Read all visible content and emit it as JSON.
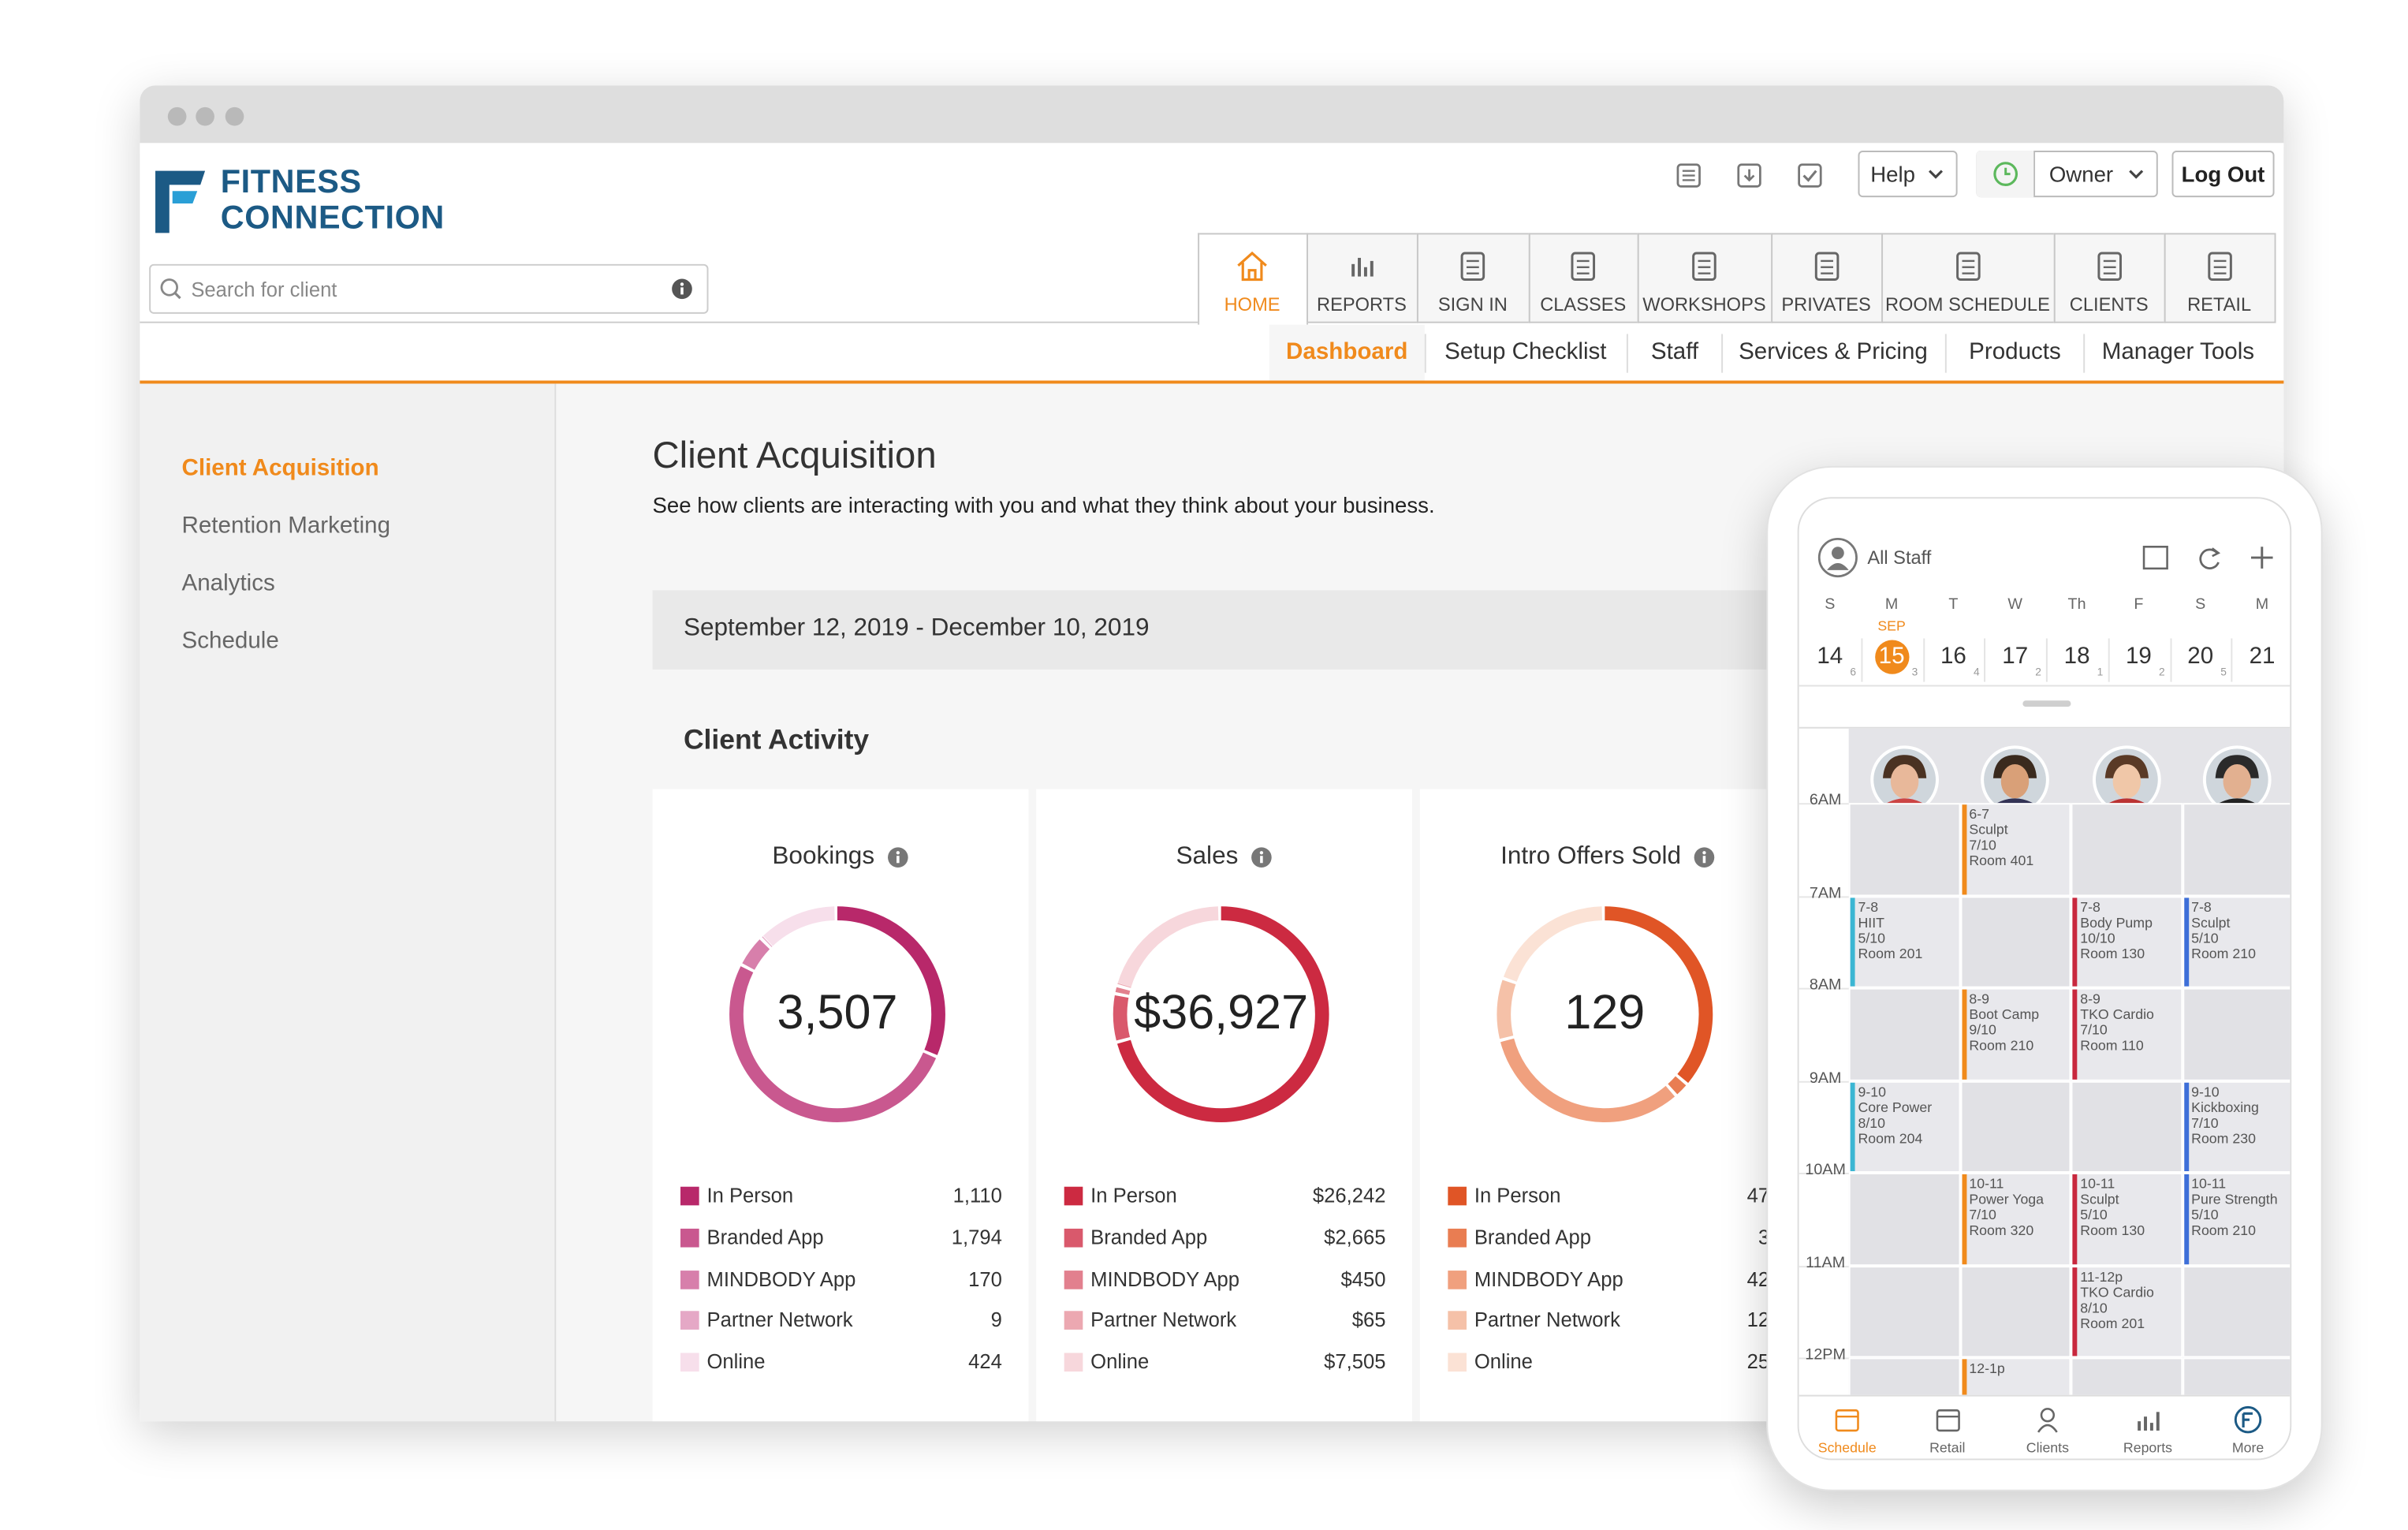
{
  "browser": {
    "logo": {
      "line1": "FITNESS",
      "line2": "CONNECTION"
    },
    "search_placeholder": "Search for client",
    "top_buttons": [
      "Help",
      "Owner",
      "Log Out"
    ],
    "nav_tabs": [
      "HOME",
      "REPORTS",
      "SIGN IN",
      "CLASSES",
      "WORKSHOPS",
      "PRIVATES",
      "ROOM SCHEDULE",
      "CLIENTS",
      "RETAIL"
    ],
    "sub_tabs": [
      "Dashboard",
      "Setup Checklist",
      "Staff",
      "Services & Pricing",
      "Products",
      "Manager Tools"
    ],
    "sidebar": [
      "Client Acquisition",
      "Retention Marketing",
      "Analytics",
      "Schedule"
    ],
    "page": {
      "title": "Client Acquisition",
      "subtitle": "See how clients are interacting with you and what they think about your business.",
      "date_range": "September 12, 2019 - December 10, 2019",
      "section": "Client Activity",
      "cards": [
        {
          "title": "Bookings",
          "total": "3,507",
          "items": [
            {
              "name": "In Person",
              "value": 1110,
              "label": "1,110",
              "color": "#b8286a"
            },
            {
              "name": "Branded App",
              "value": 1794,
              "label": "1,794",
              "color": "#c9588f"
            },
            {
              "name": "MINDBODY App",
              "value": 170,
              "label": "170",
              "color": "#d77fab"
            },
            {
              "name": "Partner Network",
              "value": 9,
              "label": "9",
              "color": "#e5a8c6"
            },
            {
              "name": "Online",
              "value": 424,
              "label": "424",
              "color": "#f7dfeb"
            }
          ]
        },
        {
          "title": "Sales",
          "total": "$36,927",
          "items": [
            {
              "name": "In Person",
              "value": 26242,
              "label": "$26,242",
              "color": "#cc2a41"
            },
            {
              "name": "Branded App",
              "value": 2665,
              "label": "$2,665",
              "color": "#d9596c"
            },
            {
              "name": "MINDBODY App",
              "value": 450,
              "label": "$450",
              "color": "#e2808e"
            },
            {
              "name": "Partner Network",
              "value": 65,
              "label": "$65",
              "color": "#eca8b1"
            },
            {
              "name": "Online",
              "value": 7505,
              "label": "$7,505",
              "color": "#f7d7dc"
            }
          ]
        },
        {
          "title": "Intro Offers Sold",
          "total": "129",
          "items": [
            {
              "name": "In Person",
              "value": 47,
              "label": "47",
              "color": "#e05526"
            },
            {
              "name": "Branded App",
              "value": 3,
              "label": "3",
              "color": "#e97d52"
            },
            {
              "name": "MINDBODY App",
              "value": 42,
              "label": "42",
              "color": "#f0a07e"
            },
            {
              "name": "Partner Network",
              "value": 12,
              "label": "12",
              "color": "#f5c1a8"
            },
            {
              "name": "Online",
              "value": 25,
              "label": "25",
              "color": "#fbe2d5"
            }
          ]
        }
      ]
    }
  },
  "phone": {
    "staff_filter": "All Staff",
    "days": [
      {
        "letter": "S",
        "date": "14",
        "count": "6"
      },
      {
        "letter": "M",
        "month": "SEP",
        "date": "15",
        "count": "3"
      },
      {
        "letter": "T",
        "date": "16",
        "count": "4"
      },
      {
        "letter": "W",
        "date": "17",
        "count": "2"
      },
      {
        "letter": "Th",
        "date": "18",
        "count": "1"
      },
      {
        "letter": "F",
        "date": "19",
        "count": "2"
      },
      {
        "letter": "S",
        "date": "20",
        "count": "5"
      },
      {
        "letter": "M",
        "date": "21"
      }
    ],
    "hours": [
      "6AM",
      "7AM",
      "8AM",
      "9AM",
      "10AM",
      "11AM",
      "12PM"
    ],
    "staff": [
      {
        "color": "#3bb6d3",
        "slots": [
          null,
          [
            "7-8",
            "HIIT",
            "5/10",
            "Room 201"
          ],
          null,
          [
            "9-10",
            "Core Power",
            "8/10",
            "Room 204"
          ],
          null,
          null,
          null
        ]
      },
      {
        "color": "#f08a1c",
        "slots": [
          [
            "6-7",
            "Sculpt",
            "7/10",
            "Room 401"
          ],
          null,
          [
            "8-9",
            "Boot Camp",
            "9/10",
            "Room 210"
          ],
          null,
          [
            "10-11",
            "Power Yoga",
            "7/10",
            "Room 320"
          ],
          null,
          [
            "12-1p"
          ]
        ]
      },
      {
        "color": "#c8283e",
        "slots": [
          null,
          [
            "7-8",
            "Body Pump",
            "10/10",
            "Room 130"
          ],
          [
            "8-9",
            "TKO Cardio",
            "7/10",
            "Room 110"
          ],
          null,
          [
            "10-11",
            "Sculpt",
            "5/10",
            "Room 130"
          ],
          [
            "11-12p",
            "TKO Cardio",
            "8/10",
            "Room 201"
          ],
          null
        ]
      },
      {
        "color": "#3e6fd8",
        "slots": [
          null,
          [
            "7-8",
            "Sculpt",
            "5/10",
            "Room 210"
          ],
          null,
          [
            "9-10",
            "Kickboxing",
            "7/10",
            "Room 230"
          ],
          [
            "10-11",
            "Pure Strength",
            "5/10",
            "Room 210"
          ],
          null,
          null
        ]
      }
    ],
    "tabs": [
      "Schedule",
      "Retail",
      "Clients",
      "Reports",
      "More"
    ]
  }
}
